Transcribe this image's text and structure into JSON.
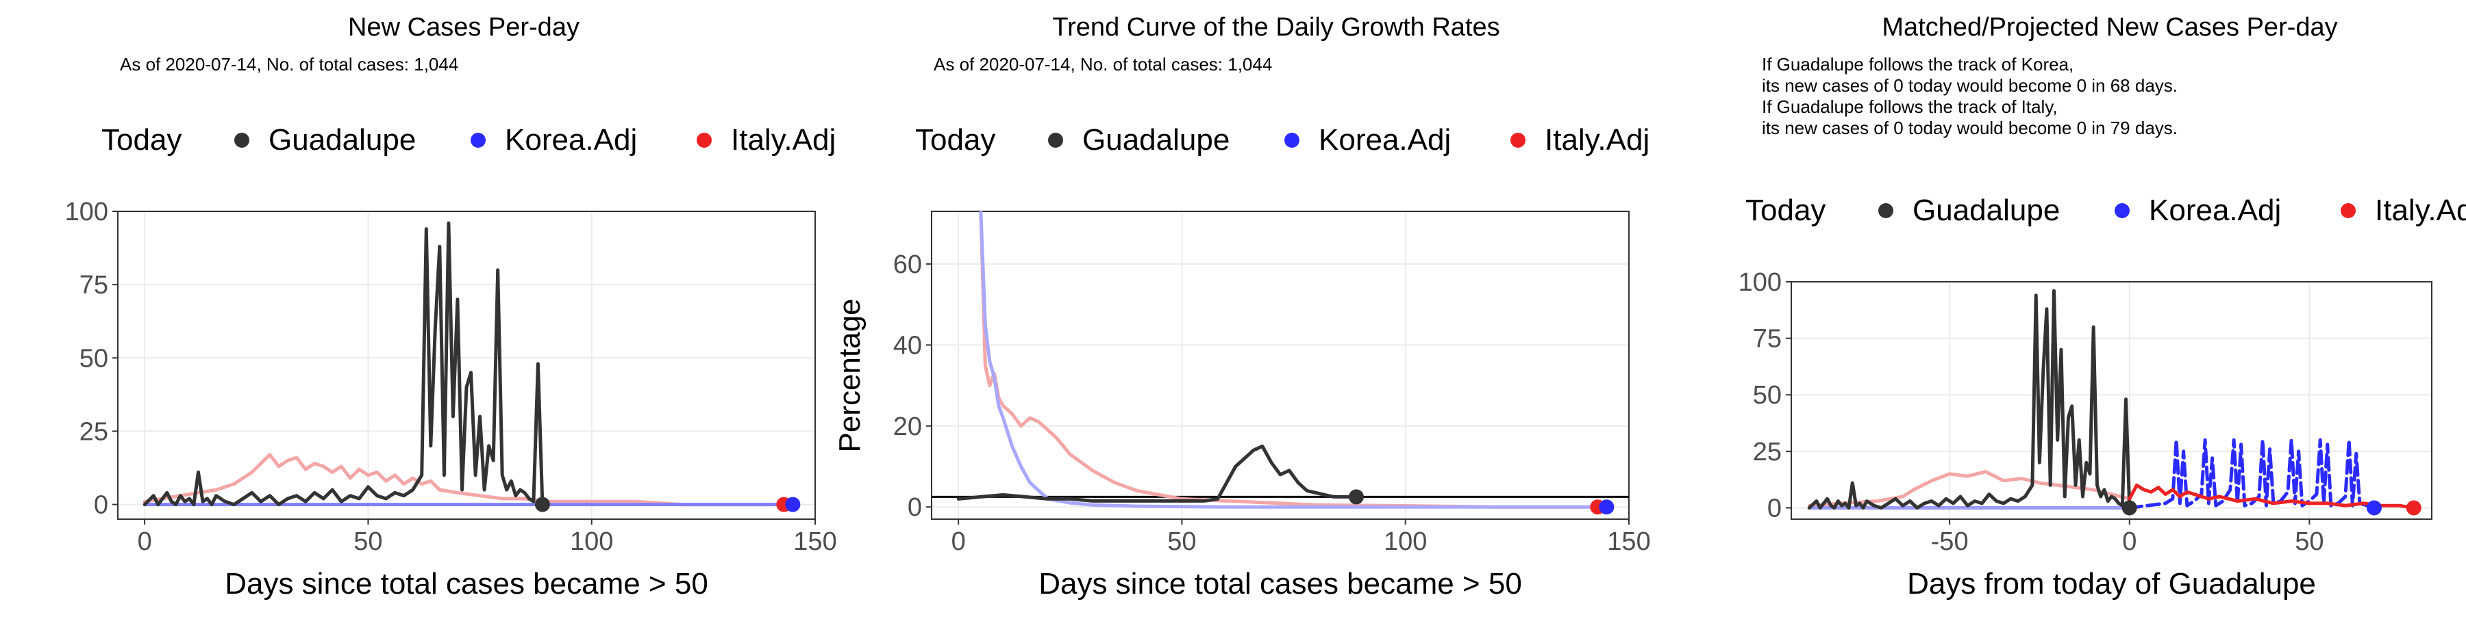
{
  "chart_data": [
    {
      "type": "line",
      "title": "New Cases Per-day",
      "subtitle": "As of 2020-07-14, No. of total cases: 1,044",
      "xlabel": "Days since total cases became > 50",
      "ylabel": "",
      "xlim": [
        -6,
        150
      ],
      "ylim": [
        -5,
        100
      ],
      "xticks": [
        0,
        50,
        100,
        150
      ],
      "yticks": [
        0,
        25,
        50,
        75,
        100
      ],
      "grid": true,
      "legend": {
        "position": "top",
        "title": "Today",
        "entries": [
          "Guadalupe",
          "Korea.Adj",
          "Italy.Adj"
        ]
      },
      "series": [
        {
          "name": "Italy.Adj",
          "color": "#f4a6a6",
          "x": [
            0,
            4,
            8,
            12,
            16,
            20,
            24,
            26,
            28,
            30,
            32,
            34,
            36,
            38,
            40,
            42,
            44,
            46,
            48,
            50,
            52,
            54,
            56,
            58,
            60,
            62,
            64,
            66,
            70,
            75,
            80,
            85,
            90,
            100,
            110,
            120,
            130,
            140,
            143
          ],
          "y": [
            1,
            2,
            3,
            4,
            5,
            7,
            11,
            14,
            17,
            13,
            15,
            16,
            12,
            14,
            13,
            11,
            13,
            9,
            12,
            10,
            11,
            8,
            10,
            7,
            9,
            7,
            8,
            5,
            4,
            3,
            2,
            2,
            1,
            1,
            1,
            0,
            0,
            0,
            0
          ]
        },
        {
          "name": "Korea.Adj",
          "color": "#8080ff",
          "x": [
            0,
            20,
            40,
            60,
            80,
            100,
            120,
            140,
            145
          ],
          "y": [
            0,
            0,
            0,
            0,
            0,
            0,
            0,
            0,
            0
          ]
        },
        {
          "name": "Guadalupe",
          "color": "#333333",
          "x": [
            0,
            2,
            3,
            4,
            5,
            6,
            7,
            8,
            9,
            10,
            11,
            12,
            13,
            14,
            15,
            16,
            18,
            20,
            22,
            24,
            26,
            28,
            30,
            32,
            34,
            36,
            38,
            40,
            42,
            44,
            46,
            48,
            50,
            52,
            54,
            56,
            58,
            60,
            62,
            63,
            64,
            65,
            66,
            67,
            68,
            69,
            70,
            71,
            72,
            73,
            74,
            75,
            76,
            77,
            78,
            79,
            80,
            81,
            82,
            83,
            84,
            85,
            86,
            87,
            88,
            89
          ],
          "y": [
            0,
            3,
            0,
            2,
            4,
            1,
            0,
            3,
            1,
            2,
            0,
            11,
            1,
            2,
            0,
            3,
            1,
            0,
            2,
            4,
            1,
            3,
            0,
            2,
            3,
            1,
            4,
            2,
            5,
            1,
            3,
            2,
            6,
            3,
            2,
            4,
            3,
            5,
            10,
            94,
            20,
            60,
            88,
            10,
            96,
            30,
            70,
            5,
            40,
            45,
            10,
            30,
            5,
            20,
            15,
            80,
            10,
            5,
            8,
            3,
            5,
            4,
            2,
            1,
            48,
            0
          ]
        }
      ],
      "today_points": [
        {
          "series": "Guadalupe",
          "x": 89,
          "y": 0
        },
        {
          "series": "Italy.Adj",
          "x": 143,
          "y": 0
        },
        {
          "series": "Korea.Adj",
          "x": 145,
          "y": 0
        }
      ]
    },
    {
      "type": "line",
      "title": "Trend Curve of the Daily Growth Rates",
      "subtitle": "As of 2020-07-14, No. of total cases: 1,044",
      "xlabel": "Days since total cases became > 50",
      "ylabel": "Percentage",
      "xlim": [
        -6,
        150
      ],
      "ylim": [
        -3,
        73
      ],
      "xticks": [
        0,
        50,
        100,
        150
      ],
      "yticks": [
        0,
        20,
        40,
        60
      ],
      "hline": 2.5,
      "grid": true,
      "legend": {
        "position": "top",
        "title": "Today",
        "entries": [
          "Guadalupe",
          "Korea.Adj",
          "Italy.Adj"
        ]
      },
      "series": [
        {
          "name": "Italy.Adj",
          "color": "#f4a6a6",
          "x": [
            5,
            6,
            7,
            8,
            9,
            10,
            12,
            14,
            16,
            18,
            20,
            22,
            25,
            30,
            35,
            40,
            45,
            50,
            60,
            70,
            80,
            100,
            120,
            143
          ],
          "y": [
            73,
            35,
            30,
            33,
            27,
            25,
            23,
            20,
            22,
            21,
            19,
            17,
            13,
            9,
            6,
            4,
            3,
            2,
            1.5,
            1,
            0.5,
            0.3,
            0,
            0
          ]
        },
        {
          "name": "Korea.Adj",
          "color": "#a8a8ff",
          "x": [
            5,
            6,
            7,
            8,
            9,
            10,
            12,
            14,
            16,
            18,
            20,
            25,
            30,
            40,
            60,
            80,
            100,
            120,
            145
          ],
          "y": [
            73,
            45,
            36,
            32,
            25,
            22,
            15,
            10,
            6,
            4,
            2,
            1,
            0.5,
            0.2,
            0,
            0,
            0,
            0,
            0
          ]
        },
        {
          "name": "Guadalupe",
          "color": "#333333",
          "x": [
            0,
            5,
            10,
            15,
            20,
            25,
            30,
            35,
            40,
            45,
            50,
            55,
            58,
            60,
            62,
            64,
            66,
            68,
            70,
            72,
            74,
            76,
            78,
            80,
            82,
            84,
            86,
            89
          ],
          "y": [
            2,
            2.5,
            3,
            2.5,
            2,
            2,
            1.5,
            1.5,
            1.5,
            1.5,
            1.5,
            1.5,
            2,
            6,
            10,
            12,
            14,
            15,
            11,
            8,
            9,
            6,
            4,
            3.5,
            3,
            2.5,
            2.5,
            2.5
          ]
        }
      ],
      "today_points": [
        {
          "series": "Guadalupe",
          "x": 89,
          "y": 2.5
        },
        {
          "series": "Italy.Adj",
          "x": 143,
          "y": 0
        },
        {
          "series": "Korea.Adj",
          "x": 145,
          "y": 0
        }
      ]
    },
    {
      "type": "line",
      "title": "Matched/Projected New Cases Per-day",
      "annotation_lines": [
        "If Guadalupe follows the track of Korea,",
        "its new cases of 0 today would become 0 in 68 days.",
        "If Guadalupe follows the track of Italy,",
        "its new cases of 0 today would become 0 in 79 days."
      ],
      "xlabel": "Days from today of Guadalupe",
      "ylabel": "",
      "xlim": [
        -94,
        84
      ],
      "ylim": [
        -5,
        100
      ],
      "xticks": [
        -50,
        0,
        50
      ],
      "yticks": [
        0,
        25,
        50,
        75,
        100
      ],
      "grid": true,
      "legend": {
        "position": "top",
        "title": "Today",
        "entries": [
          "Guadalupe",
          "Korea.Adj",
          "Italy.Adj"
        ]
      },
      "series": [
        {
          "name": "Italy.Adj (matched)",
          "color": "#f4a6a6",
          "x": [
            -89,
            -80,
            -70,
            -63,
            -60,
            -55,
            -50,
            -45,
            -40,
            -35,
            -30,
            -25,
            -20,
            -15,
            -10,
            -5,
            0
          ],
          "y": [
            1,
            2,
            3,
            5,
            8,
            12,
            15,
            14,
            16,
            12,
            13,
            11,
            10,
            9,
            8,
            6,
            4
          ]
        },
        {
          "name": "Korea.Adj (matched)",
          "color": "#9a9aff",
          "x": [
            -89,
            -60,
            -30,
            0
          ],
          "y": [
            0,
            0,
            0,
            0
          ]
        },
        {
          "name": "Guadalupe",
          "color": "#333333",
          "x": [
            -89,
            -87,
            -86,
            -85,
            -84,
            -83,
            -82,
            -81,
            -80,
            -79,
            -78,
            -77,
            -76,
            -75,
            -74,
            -73,
            -71,
            -69,
            -67,
            -65,
            -63,
            -61,
            -59,
            -57,
            -55,
            -53,
            -51,
            -49,
            -47,
            -45,
            -43,
            -41,
            -39,
            -37,
            -35,
            -33,
            -31,
            -29,
            -27,
            -26,
            -25,
            -24,
            -23,
            -22,
            -21,
            -20,
            -19,
            -18,
            -17,
            -16,
            -15,
            -14,
            -13,
            -12,
            -11,
            -10,
            -9,
            -8,
            -7,
            -6,
            -5,
            -4,
            -3,
            -2,
            -1,
            0
          ],
          "y": [
            0,
            3,
            0,
            2,
            4,
            1,
            0,
            3,
            1,
            2,
            0,
            11,
            1,
            2,
            0,
            3,
            1,
            0,
            2,
            4,
            1,
            3,
            0,
            2,
            3,
            1,
            4,
            2,
            5,
            1,
            3,
            2,
            6,
            3,
            2,
            4,
            3,
            5,
            10,
            94,
            20,
            60,
            88,
            10,
            96,
            30,
            70,
            5,
            40,
            45,
            10,
            30,
            5,
            20,
            15,
            80,
            10,
            5,
            8,
            3,
            5,
            4,
            2,
            1,
            48,
            0
          ]
        },
        {
          "name": "Korea.Adj (projected)",
          "color": "#2b2bff",
          "x": [
            0,
            5,
            10,
            12,
            13,
            14,
            15,
            16,
            18,
            20,
            21,
            22,
            23,
            24,
            26,
            28,
            29,
            30,
            31,
            32,
            34,
            36,
            37,
            38,
            39,
            40,
            42,
            44,
            45,
            46,
            47,
            48,
            50,
            52,
            53,
            54,
            55,
            56,
            58,
            60,
            61,
            62,
            63,
            64,
            66,
            68
          ],
          "y": [
            0,
            1,
            2,
            4,
            30,
            2,
            25,
            1,
            3,
            6,
            30,
            2,
            22,
            1,
            3,
            8,
            30,
            2,
            28,
            1,
            2,
            5,
            30,
            1,
            26,
            2,
            3,
            7,
            30,
            2,
            25,
            1,
            3,
            6,
            30,
            2,
            28,
            1,
            2,
            5,
            30,
            1,
            24,
            2,
            1,
            0
          ]
        },
        {
          "name": "Italy.Adj (projected)",
          "color": "#ee2222",
          "x": [
            0,
            2,
            4,
            6,
            8,
            10,
            12,
            14,
            16,
            18,
            20,
            22,
            25,
            30,
            35,
            40,
            45,
            50,
            55,
            60,
            65,
            70,
            75,
            79
          ],
          "y": [
            4,
            10,
            8,
            7,
            9,
            6,
            8,
            5,
            7,
            6,
            5,
            4,
            5,
            3,
            4,
            2,
            3,
            2,
            2,
            1,
            2,
            1,
            1,
            0
          ]
        }
      ],
      "today_points": [
        {
          "series": "Guadalupe",
          "x": 0,
          "y": 0
        },
        {
          "series": "Korea.Adj",
          "x": 68,
          "y": 0
        },
        {
          "series": "Italy.Adj",
          "x": 79,
          "y": 0
        }
      ]
    }
  ],
  "colors": {
    "Guadalupe": "#000000",
    "Korea.Adj": "#0000ff",
    "Italy.Adj": "#ff0000"
  }
}
